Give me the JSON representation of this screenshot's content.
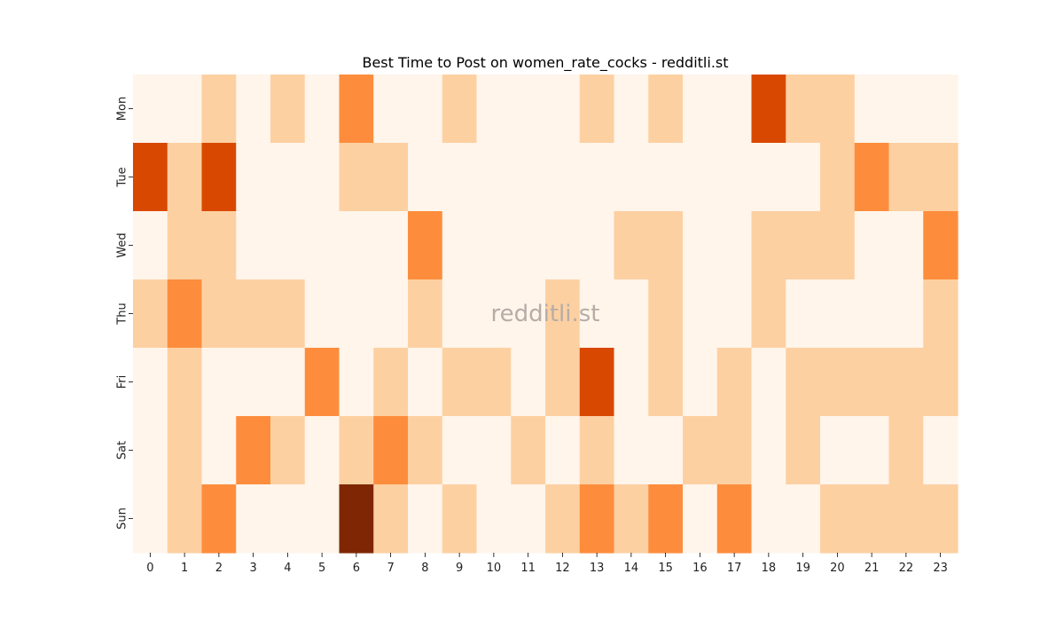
{
  "chart_data": {
    "type": "heatmap",
    "title": "Best Time to Post on women_rate_cocks - redditli.st",
    "watermark": "redditli.st",
    "x_categories": [
      "0",
      "1",
      "2",
      "3",
      "4",
      "5",
      "6",
      "7",
      "8",
      "9",
      "10",
      "11",
      "12",
      "13",
      "14",
      "15",
      "16",
      "17",
      "18",
      "19",
      "20",
      "21",
      "22",
      "23"
    ],
    "y_categories": [
      "Mon",
      "Tue",
      "Wed",
      "Thu",
      "Fri",
      "Sat",
      "Sun"
    ],
    "values": [
      [
        0,
        0,
        1,
        0,
        1,
        0,
        2,
        0,
        0,
        1,
        0,
        0,
        0,
        1,
        0,
        1,
        0,
        0,
        3,
        1,
        1,
        0,
        0,
        0
      ],
      [
        3,
        1,
        3,
        0,
        0,
        0,
        1,
        1,
        0,
        0,
        0,
        0,
        0,
        0,
        0,
        0,
        0,
        0,
        0,
        0,
        1,
        2,
        1,
        1
      ],
      [
        0,
        1,
        1,
        0,
        0,
        0,
        0,
        0,
        2,
        0,
        0,
        0,
        0,
        0,
        1,
        1,
        0,
        0,
        1,
        1,
        1,
        0,
        0,
        2
      ],
      [
        1,
        2,
        1,
        1,
        1,
        0,
        0,
        0,
        1,
        0,
        0,
        0,
        1,
        0,
        0,
        1,
        0,
        0,
        1,
        0,
        0,
        0,
        0,
        1
      ],
      [
        0,
        1,
        0,
        0,
        0,
        2,
        0,
        1,
        0,
        1,
        1,
        0,
        1,
        3,
        0,
        1,
        0,
        1,
        0,
        1,
        1,
        1,
        1,
        1
      ],
      [
        0,
        1,
        0,
        2,
        1,
        0,
        1,
        2,
        1,
        0,
        0,
        1,
        0,
        1,
        0,
        0,
        1,
        1,
        0,
        1,
        0,
        0,
        1,
        0
      ],
      [
        0,
        1,
        2,
        0,
        0,
        0,
        4,
        1,
        0,
        1,
        0,
        0,
        1,
        2,
        1,
        2,
        0,
        2,
        0,
        0,
        1,
        1,
        1,
        1
      ]
    ],
    "colors": [
      "#fff5eb",
      "#fdd0a2",
      "#fd8d3c",
      "#d94801",
      "#7f2704"
    ],
    "colormap": "Oranges",
    "grid": false,
    "legend": "none"
  }
}
